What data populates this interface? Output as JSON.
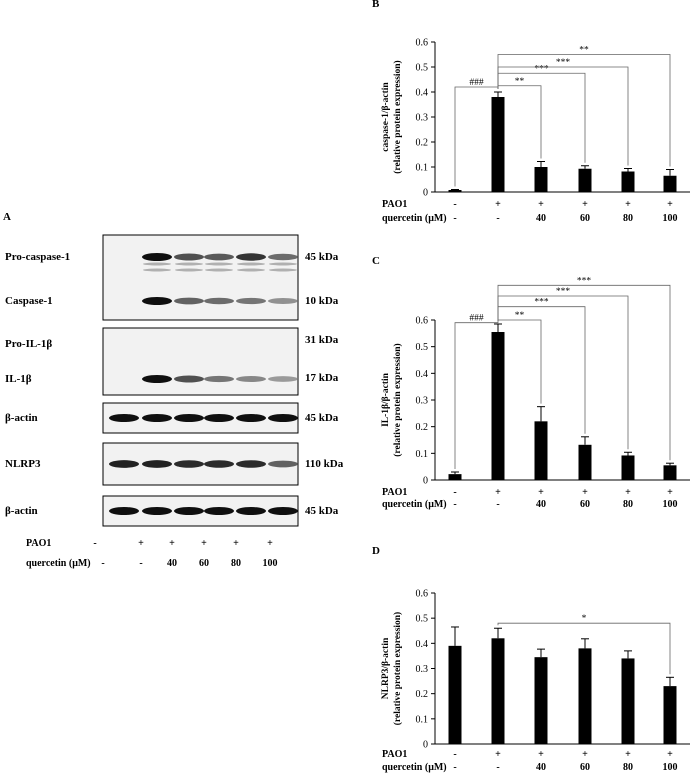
{
  "panel_a": {
    "letter": "A",
    "blots": [
      {
        "bands": [
          {
            "label": "Pro-caspase-1",
            "kda": "45 kDa",
            "intensity": [
              0,
              1.0,
              0.65,
              0.6,
              0.8,
              0.5
            ]
          },
          {
            "label": "Caspase-1",
            "kda": "10 kDa",
            "intensity": [
              0,
              1.0,
              0.55,
              0.5,
              0.45,
              0.3
            ]
          }
        ]
      },
      {
        "bands": [
          {
            "label": "Pro-IL-1β",
            "kda": "31 kDa",
            "intensity": [
              0,
              0,
              0,
              0,
              0,
              0
            ]
          },
          {
            "label": "IL-1β",
            "kda": "17 kDa",
            "intensity": [
              0,
              1.0,
              0.65,
              0.45,
              0.35,
              0.25
            ]
          }
        ]
      },
      {
        "bands": [
          {
            "label": "β-actin",
            "kda": "45 kDa",
            "intensity": [
              1.0,
              1.0,
              1.0,
              1.0,
              1.0,
              1.0
            ]
          }
        ]
      },
      {
        "bands": [
          {
            "label": "NLRP3",
            "kda": "110 kDa",
            "intensity": [
              0.9,
              0.9,
              0.85,
              0.85,
              0.85,
              0.55
            ]
          }
        ]
      },
      {
        "bands": [
          {
            "label": "β-actin",
            "kda": "45 kDa",
            "intensity": [
              1.0,
              1.0,
              1.0,
              1.0,
              1.0,
              1.0
            ]
          }
        ]
      }
    ],
    "conditions": {
      "pao1_label": "PAO1",
      "pao1_values": [
        "-",
        "+",
        "+",
        "+",
        "+",
        "+"
      ],
      "quercetin_label": "quercetin (μM)",
      "quercetin_values": [
        "-",
        "-",
        "40",
        "60",
        "80",
        "100"
      ]
    }
  },
  "chart_data": [
    {
      "panel": "B",
      "type": "bar",
      "ylabel_line1": "caspase-1/β-actin",
      "ylabel_line2": "(relative protein expression)",
      "ylim": [
        0,
        0.6
      ],
      "yticks": [
        "0",
        "0.1",
        "0.2",
        "0.3",
        "0.4",
        "0.5",
        "0.6"
      ],
      "values": [
        0.008,
        0.38,
        0.1,
        0.093,
        0.082,
        0.065
      ],
      "errors": [
        0.002,
        0.02,
        0.022,
        0.012,
        0.012,
        0.025
      ],
      "pao1_label": "PAO1",
      "pao1_values": [
        "-",
        "+",
        "+",
        "+",
        "+",
        "+"
      ],
      "quercetin_label": "quercetin (μM)",
      "quercetin_values": [
        "-",
        "-",
        "40",
        "60",
        "80",
        "100"
      ],
      "significance": [
        {
          "from": 0,
          "to": 1,
          "label": "###",
          "level": 0.42
        },
        {
          "from": 1,
          "to": 2,
          "label": "**",
          "level": 0.425
        },
        {
          "from": 1,
          "to": 3,
          "label": "***",
          "level": 0.475
        },
        {
          "from": 1,
          "to": 4,
          "label": "***",
          "level": 0.5
        },
        {
          "from": 1,
          "to": 5,
          "label": "**",
          "level": 0.55
        }
      ]
    },
    {
      "panel": "C",
      "type": "bar",
      "ylabel_line1": "IL-1β/β-actin",
      "ylabel_line2": "(relative protein expression)",
      "ylim": [
        0,
        0.6
      ],
      "yticks": [
        "0",
        "0.1",
        "0.2",
        "0.3",
        "0.4",
        "0.5",
        "0.6"
      ],
      "values": [
        0.022,
        0.555,
        0.22,
        0.132,
        0.092,
        0.055
      ],
      "errors": [
        0.008,
        0.03,
        0.055,
        0.03,
        0.012,
        0.008
      ],
      "pao1_label": "PAO1",
      "pao1_values": [
        "-",
        "+",
        "+",
        "+",
        "+",
        "+"
      ],
      "quercetin_label": "quercetin (μM)",
      "quercetin_values": [
        "-",
        "-",
        "40",
        "60",
        "80",
        "100"
      ],
      "significance": [
        {
          "from": 0,
          "to": 1,
          "label": "###",
          "level": 0.59
        },
        {
          "from": 1,
          "to": 2,
          "label": "**",
          "level": 0.6
        },
        {
          "from": 1,
          "to": 3,
          "label": "***",
          "level": 0.65
        },
        {
          "from": 1,
          "to": 4,
          "label": "***",
          "level": 0.69
        },
        {
          "from": 1,
          "to": 5,
          "label": "***",
          "level": 0.73
        }
      ]
    },
    {
      "panel": "D",
      "type": "bar",
      "ylabel_line1": "NLRP3/β-actin",
      "ylabel_line2": "(relative protein expression)",
      "ylim": [
        0,
        0.6
      ],
      "yticks": [
        "0",
        "0.1",
        "0.2",
        "0.3",
        "0.4",
        "0.5",
        "0.6"
      ],
      "values": [
        0.39,
        0.42,
        0.345,
        0.38,
        0.34,
        0.23
      ],
      "errors": [
        0.075,
        0.04,
        0.032,
        0.038,
        0.03,
        0.035
      ],
      "pao1_label": "PAO1",
      "pao1_values": [
        "-",
        "+",
        "+",
        "+",
        "+",
        "+"
      ],
      "quercetin_label": "quercetin (μM)",
      "quercetin_values": [
        "-",
        "-",
        "40",
        "60",
        "80",
        "100"
      ],
      "significance": [
        {
          "from": 1,
          "to": 5,
          "label": "*",
          "level": 0.48
        }
      ]
    }
  ]
}
